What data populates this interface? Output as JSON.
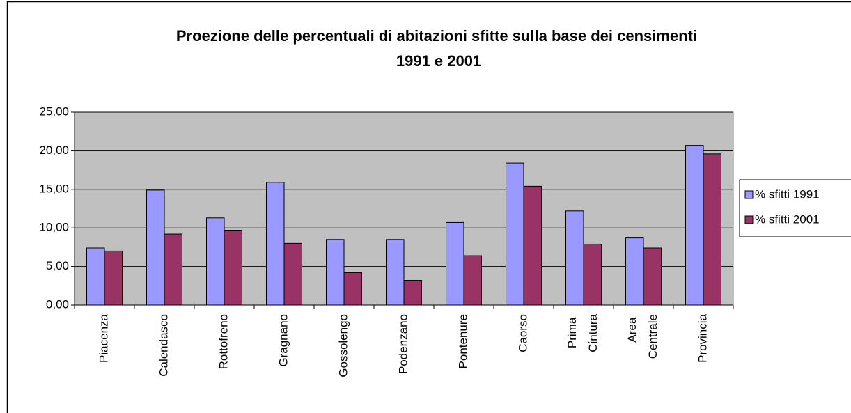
{
  "chart_data": {
    "type": "bar",
    "title": "Proezione delle percentuali di abitazioni sfitte sulla base dei censimenti 1991 e 2001",
    "categories": [
      "Piacenza",
      "Calendasco",
      "Rottofreno",
      "Gragnano",
      "Gossolengo",
      "Podenzano",
      "Pontenure",
      "Caorso",
      "Prima Cintura",
      "Area Centrale",
      "Provincia"
    ],
    "series": [
      {
        "name": "% sfitti 1991",
        "color": "#9999ff",
        "values": [
          7.4,
          14.9,
          11.3,
          15.9,
          8.5,
          8.5,
          10.7,
          18.4,
          12.2,
          8.7,
          20.7
        ]
      },
      {
        "name": "% sfitti 2001",
        "color": "#993366",
        "values": [
          7.0,
          9.2,
          9.7,
          8.0,
          4.2,
          3.2,
          6.4,
          15.4,
          7.9,
          7.4,
          19.6
        ]
      }
    ],
    "ylim": [
      0,
      25
    ],
    "yticks": [
      {
        "value": 0,
        "label": "0,00"
      },
      {
        "value": 5,
        "label": "5,00"
      },
      {
        "value": 10,
        "label": "10,00"
      },
      {
        "value": 15,
        "label": "15,00"
      },
      {
        "value": 20,
        "label": "20,00"
      },
      {
        "value": 25,
        "label": "25,00"
      }
    ],
    "grid": true,
    "legend": "right",
    "plot_background": "#c0c0c0"
  }
}
